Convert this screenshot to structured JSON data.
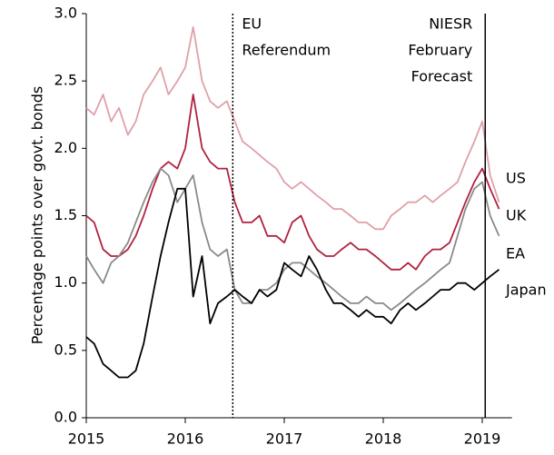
{
  "chart_data": {
    "type": "line",
    "y_label": "Percentage points over govt. bonds",
    "x": [
      2015,
      2015.08,
      2015.17,
      2015.25,
      2015.33,
      2015.42,
      2015.5,
      2015.58,
      2015.67,
      2015.75,
      2015.83,
      2015.92,
      2016,
      2016.08,
      2016.17,
      2016.25,
      2016.33,
      2016.42,
      2016.5,
      2016.58,
      2016.67,
      2016.75,
      2016.83,
      2016.92,
      2017,
      2017.08,
      2017.17,
      2017.25,
      2017.33,
      2017.42,
      2017.5,
      2017.58,
      2017.67,
      2017.75,
      2017.83,
      2017.92,
      2018,
      2018.08,
      2018.17,
      2018.25,
      2018.33,
      2018.42,
      2018.5,
      2018.58,
      2018.67,
      2018.75,
      2018.83,
      2018.92,
      2019,
      2019.08,
      2019.17
    ],
    "series": [
      {
        "name": "US",
        "color": "#dfa0a8",
        "values": [
          2.3,
          2.25,
          2.4,
          2.2,
          2.3,
          2.1,
          2.2,
          2.4,
          2.5,
          2.6,
          2.4,
          2.5,
          2.6,
          2.9,
          2.5,
          2.35,
          2.3,
          2.35,
          2.2,
          2.05,
          2.0,
          1.95,
          1.9,
          1.85,
          1.75,
          1.7,
          1.75,
          1.7,
          1.65,
          1.6,
          1.55,
          1.55,
          1.5,
          1.45,
          1.45,
          1.4,
          1.4,
          1.5,
          1.55,
          1.6,
          1.6,
          1.65,
          1.6,
          1.65,
          1.7,
          1.75,
          1.9,
          2.05,
          2.2,
          1.8,
          1.6
        ]
      },
      {
        "name": "UK",
        "color": "#b0223f",
        "values": [
          1.5,
          1.45,
          1.25,
          1.2,
          1.2,
          1.25,
          1.35,
          1.5,
          1.7,
          1.85,
          1.9,
          1.85,
          2.0,
          2.4,
          2.0,
          1.9,
          1.85,
          1.85,
          1.6,
          1.45,
          1.45,
          1.5,
          1.35,
          1.35,
          1.3,
          1.45,
          1.5,
          1.35,
          1.25,
          1.2,
          1.2,
          1.25,
          1.3,
          1.25,
          1.25,
          1.2,
          1.15,
          1.1,
          1.1,
          1.15,
          1.1,
          1.2,
          1.25,
          1.25,
          1.3,
          1.45,
          1.6,
          1.75,
          1.85,
          1.7,
          1.55
        ]
      },
      {
        "name": "EA",
        "color": "#8a8a8a",
        "values": [
          1.2,
          1.1,
          1.0,
          1.15,
          1.2,
          1.3,
          1.45,
          1.6,
          1.75,
          1.85,
          1.8,
          1.6,
          1.7,
          1.8,
          1.45,
          1.25,
          1.2,
          1.25,
          0.95,
          0.85,
          0.85,
          0.95,
          0.95,
          1.0,
          1.1,
          1.15,
          1.15,
          1.1,
          1.05,
          1.0,
          0.95,
          0.9,
          0.85,
          0.85,
          0.9,
          0.85,
          0.85,
          0.8,
          0.85,
          0.9,
          0.95,
          1.0,
          1.05,
          1.1,
          1.15,
          1.35,
          1.55,
          1.7,
          1.75,
          1.5,
          1.35
        ]
      },
      {
        "name": "Japan",
        "color": "#000000",
        "values": [
          0.6,
          0.55,
          0.4,
          0.35,
          0.3,
          0.3,
          0.35,
          0.55,
          0.9,
          1.2,
          1.45,
          1.7,
          1.7,
          0.9,
          1.2,
          0.7,
          0.85,
          0.9,
          0.95,
          0.9,
          0.85,
          0.95,
          0.9,
          0.95,
          1.15,
          1.1,
          1.05,
          1.2,
          1.1,
          0.95,
          0.85,
          0.85,
          0.8,
          0.75,
          0.8,
          0.75,
          0.75,
          0.7,
          0.8,
          0.85,
          0.8,
          0.85,
          0.9,
          0.95,
          0.95,
          1.0,
          1.0,
          0.95,
          1.0,
          1.05,
          1.1
        ]
      }
    ],
    "xlim": [
      2015,
      2019.3
    ],
    "xticks": [
      2015,
      2016,
      2017,
      2018,
      2019
    ],
    "ylim": [
      0,
      3
    ],
    "yticks": [
      {
        "value": 0,
        "label": "0.0"
      },
      {
        "value": 0.5,
        "label": "0.5"
      },
      {
        "value": 1,
        "label": "1.0"
      },
      {
        "value": 1.5,
        "label": "1.5"
      },
      {
        "value": 2,
        "label": "2.0"
      },
      {
        "value": 2.5,
        "label": "2.5"
      },
      {
        "value": 3,
        "label": "3.0"
      }
    ],
    "grid": false,
    "annotations": [
      {
        "x": 2016.48,
        "lines": [
          "EU",
          "Referendum"
        ],
        "style": "dotted"
      },
      {
        "x": 2019.03,
        "lines": [
          "NIESR",
          "February",
          "Forecast"
        ],
        "style": "solid"
      }
    ]
  }
}
